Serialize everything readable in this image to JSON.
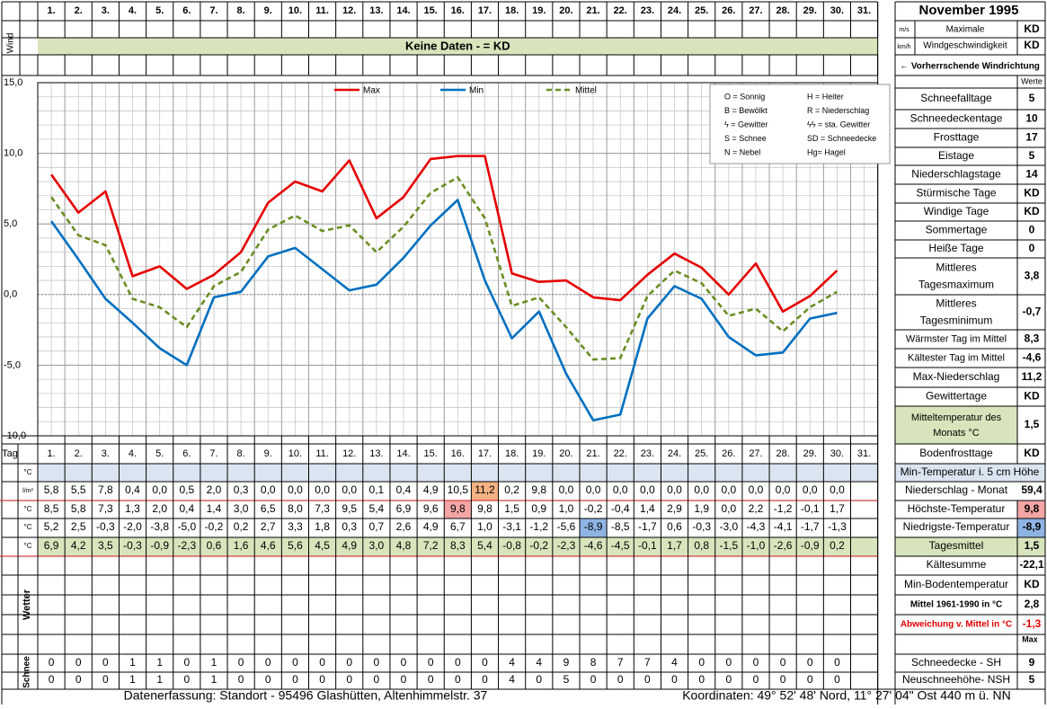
{
  "header": {
    "title": "November 1995",
    "day_labels": [
      "1.",
      "2.",
      "3.",
      "4.",
      "5.",
      "6.",
      "7.",
      "8.",
      "9.",
      "10.",
      "11.",
      "12.",
      "13.",
      "14.",
      "15.",
      "16.",
      "17.",
      "18.",
      "19.",
      "20.",
      "21.",
      "22.",
      "23.",
      "24.",
      "25.",
      "26.",
      "27.",
      "28.",
      "29.",
      "30.",
      "31."
    ],
    "wind_label": "Wind",
    "unit_ms": "m/s",
    "unit_kmh": "km/h",
    "max_wind_label": "Maximale Windgeschwindigkeit",
    "max_wind_ms": "KD",
    "max_wind_kmh": "KD",
    "no_data_banner": "Keine Daten -  = KD",
    "prevailing_wind_label": "← Vorherrschende Windrichtung"
  },
  "legend": {
    "max": "Max",
    "min": "Min",
    "mittel": "Mittel",
    "symbols": [
      [
        "O = Sonnig",
        "H = Heiter"
      ],
      [
        "B = Bewölkt",
        "R = Niederschlag"
      ],
      [
        "ϟ = Gewitter",
        "ϟϟ = sta. Gewitter"
      ],
      [
        "S = Schnee",
        "SD = Schneedecke"
      ],
      [
        "N = Nebel",
        "Hg= Hagel"
      ]
    ]
  },
  "chart_data": {
    "type": "line",
    "x": [
      1,
      2,
      3,
      4,
      5,
      6,
      7,
      8,
      9,
      10,
      11,
      12,
      13,
      14,
      15,
      16,
      17,
      18,
      19,
      20,
      21,
      22,
      23,
      24,
      25,
      26,
      27,
      28,
      29,
      30
    ],
    "series": [
      {
        "name": "Max",
        "color": "#e60000",
        "values": [
          8.5,
          5.8,
          7.3,
          1.3,
          2.0,
          0.4,
          1.4,
          3.0,
          6.5,
          8.0,
          7.3,
          9.5,
          5.4,
          6.9,
          9.6,
          9.8,
          9.8,
          1.5,
          0.9,
          1.0,
          -0.2,
          -0.4,
          1.4,
          2.9,
          1.9,
          0.0,
          2.2,
          -1.2,
          -0.1,
          1.7
        ]
      },
      {
        "name": "Min",
        "color": "#0070c0",
        "values": [
          5.2,
          2.5,
          -0.3,
          -2.0,
          -3.8,
          -5.0,
          -0.2,
          0.2,
          2.7,
          3.3,
          1.8,
          0.3,
          0.7,
          2.6,
          4.9,
          6.7,
          1.0,
          -3.1,
          -1.2,
          -5.6,
          -8.9,
          -8.5,
          -1.7,
          0.6,
          -0.3,
          -3.0,
          -4.3,
          -4.1,
          -1.7,
          -1.3
        ]
      },
      {
        "name": "Mittel",
        "color": "#6b8e23",
        "values": [
          6.9,
          4.2,
          3.5,
          -0.3,
          -0.9,
          -2.3,
          0.6,
          1.6,
          4.6,
          5.6,
          4.5,
          4.9,
          3.0,
          4.8,
          7.2,
          8.3,
          5.4,
          -0.8,
          -0.2,
          -2.3,
          -4.6,
          -4.5,
          -0.1,
          1.7,
          0.8,
          -1.5,
          -1.0,
          -2.6,
          -0.9,
          0.2
        ]
      }
    ],
    "ylim": [
      -10,
      15
    ],
    "y_ticks": [
      "15,0",
      "10,0",
      "5,0",
      "0,0",
      "-5,0",
      "-10,0"
    ],
    "grid": true
  },
  "table": {
    "tag_label": "Tag",
    "unit_c": "°C",
    "unit_lm2": "l/m²",
    "niederschlag": [
      "5,8",
      "5,5",
      "7,8",
      "0,4",
      "0,0",
      "0,5",
      "2,0",
      "0,3",
      "0,0",
      "0,0",
      "0,0",
      "0,0",
      "0,1",
      "0,4",
      "4,9",
      "10,5",
      "11,2",
      "0,2",
      "9,8",
      "0,0",
      "0,0",
      "0,0",
      "0,0",
      "0,0",
      "0,0",
      "0,0",
      "0,0",
      "0,0",
      "0,0",
      "0,0"
    ],
    "max": [
      "8,5",
      "5,8",
      "7,3",
      "1,3",
      "2,0",
      "0,4",
      "1,4",
      "3,0",
      "6,5",
      "8,0",
      "7,3",
      "9,5",
      "5,4",
      "6,9",
      "9,6",
      "9,8",
      "9,8",
      "1,5",
      "0,9",
      "1,0",
      "-0,2",
      "-0,4",
      "1,4",
      "2,9",
      "1,9",
      "0,0",
      "2,2",
      "-1,2",
      "-0,1",
      "1,7"
    ],
    "min": [
      "5,2",
      "2,5",
      "-0,3",
      "-2,0",
      "-3,8",
      "-5,0",
      "-0,2",
      "0,2",
      "2,7",
      "3,3",
      "1,8",
      "0,3",
      "0,7",
      "2,6",
      "4,9",
      "6,7",
      "1,0",
      "-3,1",
      "-1,2",
      "-5,6",
      "-8,9",
      "-8,5",
      "-1,7",
      "0,6",
      "-0,3",
      "-3,0",
      "-4,3",
      "-4,1",
      "-1,7",
      "-1,3"
    ],
    "mittel": [
      "6,9",
      "4,2",
      "3,5",
      "-0,3",
      "-0,9",
      "-2,3",
      "0,6",
      "1,6",
      "4,6",
      "5,6",
      "4,5",
      "4,9",
      "3,0",
      "4,8",
      "7,2",
      "8,3",
      "5,4",
      "-0,8",
      "-0,2",
      "-2,3",
      "-4,6",
      "-4,5",
      "-0,1",
      "1,7",
      "0,8",
      "-1,5",
      "-1,0",
      "-2,6",
      "-0,9",
      "0,2"
    ],
    "wetter_label": "Wetter",
    "schnee_label": "Schnee",
    "schneedecke": [
      "0",
      "0",
      "0",
      "1",
      "1",
      "0",
      "1",
      "0",
      "0",
      "0",
      "0",
      "0",
      "0",
      "0",
      "0",
      "0",
      "0",
      "4",
      "4",
      "9",
      "8",
      "7",
      "7",
      "4",
      "0",
      "0",
      "0",
      "0",
      "0",
      "0"
    ],
    "neuschnee": [
      "0",
      "0",
      "0",
      "1",
      "1",
      "0",
      "1",
      "0",
      "0",
      "0",
      "0",
      "0",
      "0",
      "0",
      "0",
      "0",
      "0",
      "4",
      "0",
      "5",
      "0",
      "0",
      "0",
      "0",
      "0",
      "0",
      "0",
      "0",
      "0",
      "0"
    ]
  },
  "stats": {
    "werte_label": "Werte",
    "items": [
      {
        "label": "Schneefalltage",
        "value": "5"
      },
      {
        "label": "Schneedeckentage",
        "value": "10"
      },
      {
        "label": "Frosttage",
        "value": "17"
      },
      {
        "label": "Eistage",
        "value": "5"
      },
      {
        "label": "Niederschlagstage",
        "value": "14"
      },
      {
        "label": "Stürmische Tage",
        "value": "KD"
      },
      {
        "label": "Windige Tage",
        "value": "KD"
      },
      {
        "label": "Sommertage",
        "value": "0"
      },
      {
        "label": "Heiße Tage",
        "value": "0"
      },
      {
        "label": "Mittleres Tagesmaximum",
        "value": "3,8"
      },
      {
        "label": "Mittleres Tagesminimum",
        "value": "-0,7"
      },
      {
        "label": "Wärmster Tag im Mittel",
        "value": "8,3"
      },
      {
        "label": "Kältester Tag im Mittel",
        "value": "-4,6"
      },
      {
        "label": "Max-Niederschlag",
        "value": "11,2"
      },
      {
        "label": "Gewittertage",
        "value": "KD"
      },
      {
        "label": "Mitteltemperatur des Monats °C",
        "value": "1,5"
      },
      {
        "label": "Bodenfrosttage",
        "value": "KD"
      }
    ],
    "min_temp_5cm": "Min-Temperatur i. 5 cm Höhe",
    "niederschlag_monat": {
      "label": "Niederschlag - Monat",
      "value": "59,4"
    },
    "hoechste": {
      "label": "Höchste-Temperatur",
      "value": "9,8"
    },
    "niedrigste": {
      "label": "Niedrigste-Temperatur",
      "value": "-8,9"
    },
    "tagesmittel": {
      "label": "Tagesmittel",
      "value": "1,5"
    },
    "kaeltesumme": {
      "label": "Kältesumme",
      "value": "-22,1"
    },
    "min_boden": {
      "label": "Min-Bodentemperatur",
      "value": "KD"
    },
    "mittel_1961": {
      "label": "Mittel 1961-1990 in °C",
      "value": "2,8"
    },
    "abweichung": {
      "label": "Abweichung v. Mittel in °C",
      "value": "-1,3"
    },
    "max_label": "Max",
    "schneedecke": {
      "label": "Schneedecke -  SH",
      "value": "9"
    },
    "neuschnee": {
      "label": "Neuschneehöhe- NSH",
      "value": "5"
    }
  },
  "footer": {
    "left": "Datenerfassung:  Standort -  95496  Glashütten, Altenhimmelstr. 37",
    "right": "Koordinaten:  49° 52' 48' Nord,  11° 27' 04\" Ost   440 m ü. NN"
  },
  "colors": {
    "green_band": "#d8e4bc",
    "blue_band": "#dbe5f1",
    "highlight_red": "#f4a6a6",
    "highlight_orange": "#f4b183",
    "highlight_blue": "#8eb4e3"
  }
}
